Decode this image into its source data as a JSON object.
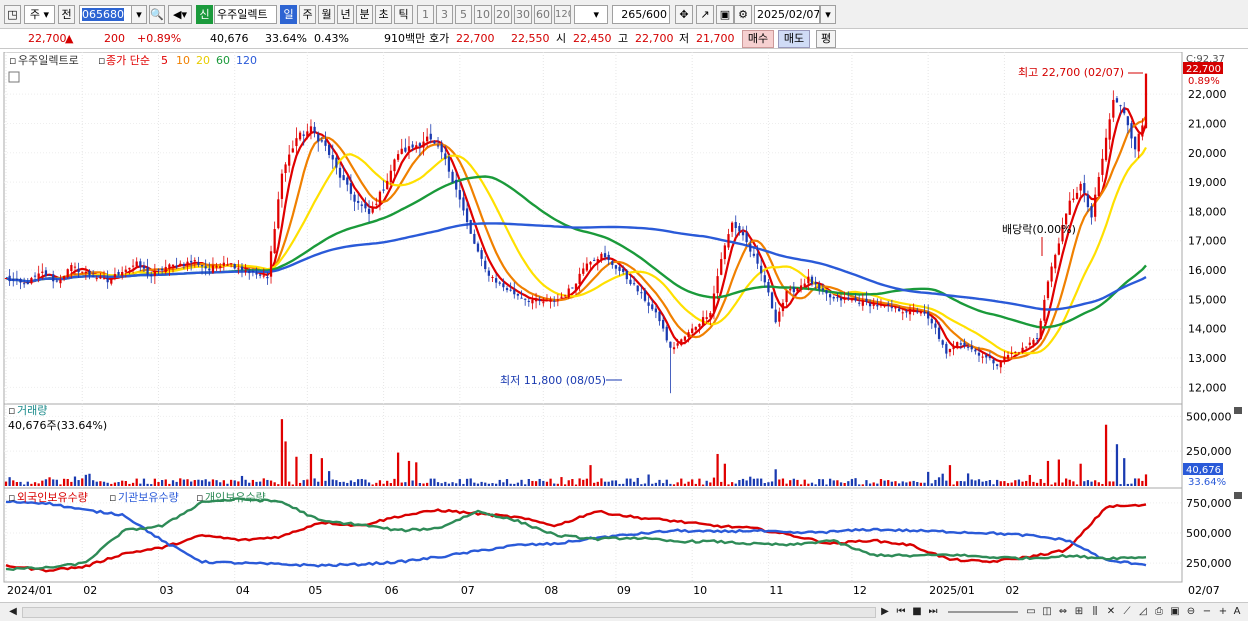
{
  "toolbar": {
    "type_value": "주",
    "prev_label": "전",
    "code": "065680",
    "new_label": "신",
    "name": "우주일렉트",
    "periods": [
      "일",
      "주",
      "월",
      "년",
      "분",
      "초",
      "틱"
    ],
    "active_period": "일",
    "intervals": [
      "1",
      "3",
      "5",
      "10",
      "20",
      "30",
      "60",
      "120"
    ],
    "count": "265",
    "count_max": "/600",
    "date": "2025/02/07"
  },
  "quote": {
    "price": "22,700",
    "change": "200",
    "change_pct": "+0.89%",
    "volume": "40,676",
    "turnover_pct": "33.64%",
    "ratio": "0.43%",
    "amount": "910백만",
    "bid_label": "호가",
    "ask": "22,700",
    "bid": "22,550",
    "open_label": "시",
    "open": "22,450",
    "high_label": "고",
    "high": "22,700",
    "low_label": "저",
    "low": "21,700",
    "buy_label": "매수",
    "sell_label": "매도",
    "eval_label": "평"
  },
  "legend": {
    "name": "우주일렉트로",
    "ma_title": "종가 단순",
    "ma": [
      {
        "label": "5",
        "color": "#e00000"
      },
      {
        "label": "10",
        "color": "#f08000"
      },
      {
        "label": "20",
        "color": "#ffe000"
      },
      {
        "label": "60",
        "color": "#1a9a3a"
      },
      {
        "label": "120",
        "color": "#2a5ad8"
      }
    ]
  },
  "annotations": {
    "high": "최고 22,700 (02/07)",
    "low": "최저 11,800 (08/05)",
    "dividend": "배당락(0.00%)",
    "corner": "C:92.37",
    "price_tag": "22,700",
    "pct_tag": "0.89%",
    "vol_tag": "40,676",
    "vol_pct_tag": "33.64%"
  },
  "volume_panel": {
    "title": "거래량",
    "value": "40,676주(33.64%)"
  },
  "holding_panel": {
    "legend": [
      {
        "label": "외국인보유수량",
        "color": "#d80000"
      },
      {
        "label": "기관보유수량",
        "color": "#2a5ad8"
      },
      {
        "label": "개인보유수량",
        "color": "#2e8b57"
      }
    ]
  },
  "chart_data": [
    {
      "type": "candlestick",
      "x_ticks": [
        "2024/01",
        "02",
        "03",
        "04",
        "05",
        "06",
        "07",
        "08",
        "09",
        "10",
        "11",
        "12",
        "2025/01",
        "02",
        "02/07"
      ],
      "y_ticks": [
        "22,000",
        "21,000",
        "20,000",
        "19,000",
        "18,000",
        "17,000",
        "16,000",
        "15,000",
        "14,000",
        "13,000",
        "12,000"
      ],
      "ylim": [
        11500,
        23300
      ],
      "close_path": [
        [
          0,
          15700
        ],
        [
          5,
          15500
        ],
        [
          10,
          15900
        ],
        [
          14,
          15600
        ],
        [
          18,
          16100
        ],
        [
          22,
          15900
        ],
        [
          28,
          15600
        ],
        [
          32,
          16000
        ],
        [
          36,
          16200
        ],
        [
          40,
          15800
        ],
        [
          44,
          16100
        ],
        [
          48,
          16200
        ],
        [
          52,
          16300
        ],
        [
          56,
          16000
        ],
        [
          60,
          16300
        ],
        [
          64,
          16100
        ],
        [
          68,
          15900
        ],
        [
          72,
          15700
        ],
        [
          76,
          19300
        ],
        [
          80,
          20500
        ],
        [
          84,
          20800
        ],
        [
          88,
          20200
        ],
        [
          92,
          19200
        ],
        [
          96,
          18400
        ],
        [
          100,
          17900
        ],
        [
          104,
          18800
        ],
        [
          108,
          20000
        ],
        [
          112,
          20200
        ],
        [
          116,
          20500
        ],
        [
          120,
          20000
        ],
        [
          124,
          18800
        ],
        [
          128,
          17200
        ],
        [
          132,
          16000
        ],
        [
          136,
          15500
        ],
        [
          140,
          15200
        ],
        [
          144,
          15000
        ],
        [
          148,
          14900
        ],
        [
          152,
          15000
        ],
        [
          156,
          15400
        ],
        [
          160,
          16300
        ],
        [
          164,
          16500
        ],
        [
          168,
          16100
        ],
        [
          172,
          15600
        ],
        [
          176,
          15000
        ],
        [
          180,
          14300
        ],
        [
          183,
          13300
        ],
        [
          186,
          13600
        ],
        [
          190,
          14100
        ],
        [
          194,
          14600
        ],
        [
          197,
          16400
        ],
        [
          200,
          17600
        ],
        [
          203,
          17200
        ],
        [
          206,
          16400
        ],
        [
          209,
          15600
        ],
        [
          212,
          14300
        ],
        [
          215,
          15200
        ],
        [
          218,
          15400
        ],
        [
          221,
          15700
        ],
        [
          224,
          15300
        ],
        [
          228,
          15000
        ],
        [
          232,
          15000
        ],
        [
          236,
          14900
        ],
        [
          240,
          14800
        ],
        [
          244,
          14700
        ],
        [
          248,
          14600
        ],
        [
          252,
          14600
        ],
        [
          256,
          14000
        ],
        [
          259,
          13100
        ],
        [
          262,
          13600
        ],
        [
          266,
          13300
        ],
        [
          270,
          13000
        ],
        [
          273,
          12800
        ],
        [
          276,
          13100
        ],
        [
          280,
          13300
        ],
        [
          284,
          13700
        ],
        [
          287,
          15600
        ],
        [
          290,
          17000
        ],
        [
          293,
          18300
        ],
        [
          296,
          18900
        ],
        [
          299,
          17800
        ],
        [
          302,
          19800
        ],
        [
          305,
          21800
        ],
        [
          308,
          21400
        ],
        [
          311,
          20200
        ],
        [
          314,
          21300
        ]
      ],
      "extreme_high": 22700,
      "extreme_low": 11800
    },
    {
      "type": "bar",
      "title": "거래량",
      "y_ticks": [
        "500,000",
        "250,000"
      ],
      "ylim": [
        0,
        560000
      ]
    },
    {
      "type": "line",
      "series": [
        {
          "name": "외국인보유수량",
          "values": [
            230000,
            190000,
            220000,
            330000,
            380000,
            480000,
            440000,
            470000,
            590000,
            560000,
            640000,
            690000,
            660000,
            630000,
            560000,
            680000,
            630000,
            600000,
            560000,
            540000,
            480000,
            410000,
            440000,
            400000,
            280000,
            260000,
            300000,
            360000,
            720000,
            730000
          ]
        },
        {
          "name": "기관보유수량",
          "values": [
            760000,
            750000,
            690000,
            650000,
            430000,
            260000,
            250000,
            240000,
            230000,
            240000,
            260000,
            300000,
            350000,
            400000,
            410000,
            460000,
            490000,
            520000,
            510000,
            520000,
            500000,
            510000,
            530000,
            520000,
            510000,
            500000,
            480000,
            440000,
            270000,
            240000
          ]
        },
        {
          "name": "개인보유수량",
          "values": [
            200000,
            210000,
            250000,
            520000,
            560000,
            760000,
            780000,
            760000,
            600000,
            570000,
            520000,
            540000,
            680000,
            600000,
            480000,
            450000,
            460000,
            430000,
            430000,
            410000,
            400000,
            440000,
            320000,
            310000,
            320000,
            300000,
            290000,
            310000,
            290000,
            300000
          ]
        }
      ],
      "y_ticks": [
        "750,000",
        "500,000",
        "250,000"
      ],
      "ylim": [
        110000,
        840000
      ]
    }
  ]
}
